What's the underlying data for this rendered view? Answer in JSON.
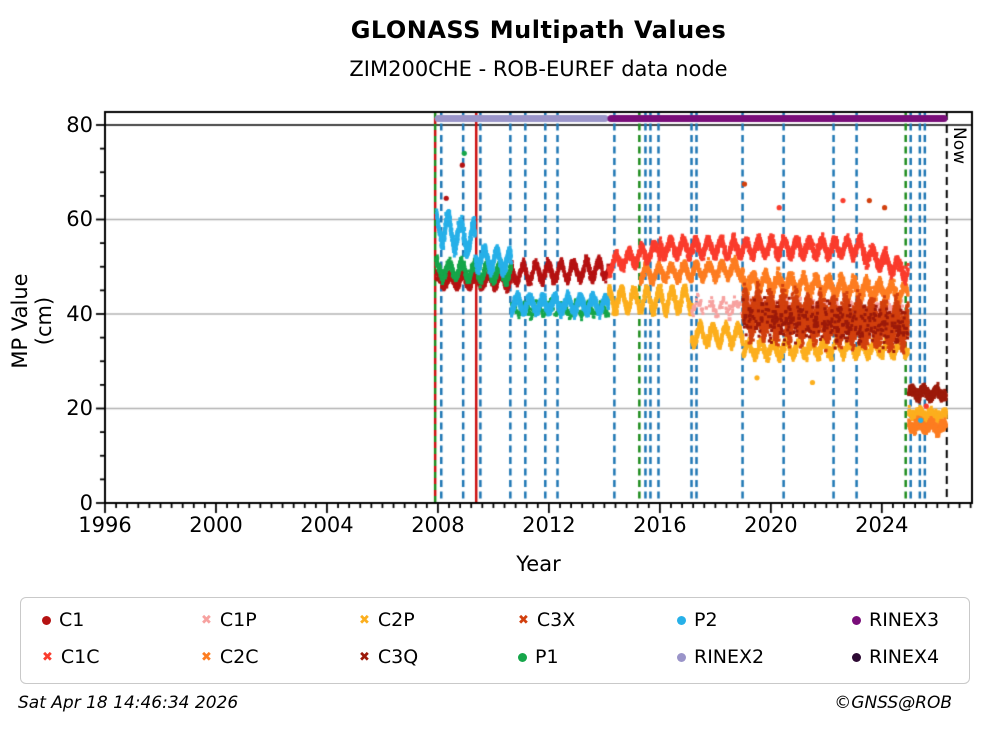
{
  "chart": {
    "title": "GLONASS Multipath Values",
    "subtitle": "ZIM200CHE - ROB-EUREF data node",
    "xlabel": "Year",
    "ylabel": "MP Value (cm)",
    "now_label": "Now"
  },
  "footer": {
    "timestamp": "Sat Apr 18 14:46:34 2026",
    "copyright": "©GNSS@ROB"
  },
  "chart_data": {
    "type": "scatter",
    "title": "GLONASS Multipath Values",
    "subtitle": "ZIM200CHE - ROB-EUREF data node",
    "xlabel": "Year",
    "ylabel": "MP Value (cm)",
    "xlim": [
      1996,
      2027.25
    ],
    "ylim": [
      0,
      82.75
    ],
    "xticks": [
      1996,
      2000,
      2004,
      2008,
      2012,
      2016,
      2020,
      2024
    ],
    "yticks": [
      0,
      20,
      40,
      60,
      80
    ],
    "x_minor_step": 0.4,
    "y_minor_step": 5,
    "grid_y_values": [
      20,
      40,
      60
    ],
    "ref_line_y": 80,
    "grid_color": "#b0b0b0",
    "event_colors": {
      "blue": "#1f77b4",
      "green": "#1e8c1e",
      "red": "#cc1111",
      "black": "#000000"
    },
    "rinex_bars": [
      {
        "label": "RINEX2",
        "from": 2007.9,
        "to": 2014.13,
        "mp": 81.4,
        "color": "#9a94c9"
      },
      {
        "label": "RINEX3",
        "from": 2014.13,
        "to": 2026.35,
        "mp": 81.4,
        "color": "#790d79"
      }
    ],
    "now_year": 2026.34,
    "event_lines": [
      {
        "year": 2007.9,
        "color": "green-red",
        "style": "dashed"
      },
      {
        "year": 2008.12,
        "color": "blue",
        "style": "dashed"
      },
      {
        "year": 2008.91,
        "color": "blue",
        "style": "dashed"
      },
      {
        "year": 2009.38,
        "color": "red",
        "style": "solid"
      },
      {
        "year": 2009.53,
        "color": "blue",
        "style": "dashed"
      },
      {
        "year": 2010.61,
        "color": "blue",
        "style": "dashed"
      },
      {
        "year": 2011.15,
        "color": "blue",
        "style": "dashed"
      },
      {
        "year": 2011.87,
        "color": "blue",
        "style": "dashed"
      },
      {
        "year": 2012.31,
        "color": "blue",
        "style": "dashed"
      },
      {
        "year": 2014.36,
        "color": "blue",
        "style": "dashed"
      },
      {
        "year": 2015.26,
        "color": "green",
        "style": "dashed"
      },
      {
        "year": 2015.48,
        "color": "blue",
        "style": "dashed"
      },
      {
        "year": 2015.66,
        "color": "blue",
        "style": "dashed"
      },
      {
        "year": 2015.95,
        "color": "blue",
        "style": "dashed"
      },
      {
        "year": 2017.14,
        "color": "blue",
        "style": "dashed"
      },
      {
        "year": 2017.32,
        "color": "blue",
        "style": "dashed"
      },
      {
        "year": 2018.98,
        "color": "blue",
        "style": "dashed"
      },
      {
        "year": 2020.46,
        "color": "blue",
        "style": "dashed"
      },
      {
        "year": 2022.26,
        "color": "blue",
        "style": "dashed"
      },
      {
        "year": 2023.09,
        "color": "blue",
        "style": "dashed"
      },
      {
        "year": 2024.86,
        "color": "green",
        "style": "dashed"
      },
      {
        "year": 2025.04,
        "color": "blue",
        "style": "dashed"
      },
      {
        "year": 2025.37,
        "color": "blue",
        "style": "dashed"
      },
      {
        "year": 2025.55,
        "color": "blue",
        "style": "dashed"
      }
    ],
    "legend": [
      {
        "id": "C1",
        "label": "C1",
        "marker": "dot",
        "color": "#b51212"
      },
      {
        "id": "C1C",
        "label": "C1C",
        "marker": "x",
        "color": "#fa3c2d"
      },
      {
        "id": "C1P",
        "label": "C1P",
        "marker": "x",
        "color": "#f7a2a0"
      },
      {
        "id": "C2C",
        "label": "C2C",
        "marker": "x",
        "color": "#fd7d21"
      },
      {
        "id": "C2P",
        "label": "C2P",
        "marker": "x",
        "color": "#fcaf1e"
      },
      {
        "id": "C3Q",
        "label": "C3Q",
        "marker": "x",
        "color": "#9c1a0a"
      },
      {
        "id": "C3X",
        "label": "C3X",
        "marker": "x",
        "color": "#d2400e"
      },
      {
        "id": "P1",
        "label": "P1",
        "marker": "dot",
        "color": "#16a64a"
      },
      {
        "id": "P2",
        "label": "P2",
        "marker": "dot",
        "color": "#27b0e8"
      },
      {
        "id": "RINEX2",
        "label": "RINEX2",
        "marker": "dot",
        "color": "#9a94c9"
      },
      {
        "id": "RINEX3",
        "label": "RINEX3",
        "marker": "dot",
        "color": "#790d79"
      },
      {
        "id": "RINEX4",
        "label": "RINEX4",
        "marker": "dot",
        "color": "#2d0a33"
      }
    ],
    "draw_order": [
      "C1",
      "P1",
      "P2",
      "C2P",
      "C1P",
      "C2C",
      "C1C",
      "C3X",
      "C3Q"
    ],
    "series": [
      {
        "id": "C1",
        "color": "#b51212",
        "bands": [
          {
            "from": 2007.95,
            "to": 2010.65,
            "mp_start": 47.0,
            "mp_end": 47.0,
            "season_amp": 1.2,
            "spread": 1.6,
            "pts_per_year": 260
          },
          {
            "from": 2010.65,
            "to": 2014.15,
            "mp_start": 48.5,
            "mp_end": 49.5,
            "season_amp": 1.8,
            "spread": 1.8,
            "pts_per_year": 260
          }
        ]
      },
      {
        "id": "P1",
        "color": "#16a64a",
        "bands": [
          {
            "from": 2007.95,
            "to": 2010.65,
            "mp_start": 49.5,
            "mp_end": 48.5,
            "season_amp": 1.6,
            "spread": 1.8,
            "pts_per_year": 300
          },
          {
            "from": 2010.65,
            "to": 2014.15,
            "mp_start": 41.0,
            "mp_end": 41.0,
            "season_amp": 1.2,
            "spread": 1.5,
            "pts_per_year": 80
          }
        ]
      },
      {
        "id": "P2",
        "color": "#27b0e8",
        "bands": [
          {
            "from": 2007.95,
            "to": 2009.35,
            "mp_start": 58.5,
            "mp_end": 55.5,
            "season_amp": 3.0,
            "spread": 2.6,
            "pts_per_year": 420
          },
          {
            "from": 2009.35,
            "to": 2010.65,
            "mp_start": 52.0,
            "mp_end": 51.0,
            "season_amp": 2.0,
            "spread": 2.2,
            "pts_per_year": 420
          },
          {
            "from": 2010.65,
            "to": 2014.15,
            "mp_start": 42.0,
            "mp_end": 42.0,
            "season_amp": 1.5,
            "spread": 1.8,
            "pts_per_year": 420
          }
        ]
      },
      {
        "id": "C2P",
        "color": "#fcaf1e",
        "bands": [
          {
            "from": 2014.15,
            "to": 2017.15,
            "mp_start": 43.0,
            "mp_end": 43.0,
            "season_amp": 2.2,
            "spread": 2.0,
            "pts_per_year": 330
          },
          {
            "from": 2017.15,
            "to": 2019.0,
            "mp_start": 35.5,
            "mp_end": 35.5,
            "season_amp": 1.8,
            "spread": 1.8,
            "pts_per_year": 330
          },
          {
            "from": 2019.0,
            "to": 2024.95,
            "mp_start": 32.5,
            "mp_end": 33.0,
            "season_amp": 1.5,
            "spread": 2.2,
            "pts_per_year": 200
          },
          {
            "from": 2024.97,
            "to": 2026.32,
            "mp_start": 19.0,
            "mp_end": 18.5,
            "season_amp": 0.6,
            "spread": 1.5,
            "pts_per_year": 350
          }
        ]
      },
      {
        "id": "C1P",
        "color": "#f7a2a0",
        "bands": [
          {
            "from": 2017.15,
            "to": 2024.95,
            "mp_start": 41.5,
            "mp_end": 41.0,
            "season_amp": 1.2,
            "spread": 2.2,
            "pts_per_year": 60
          }
        ]
      },
      {
        "id": "C2C",
        "color": "#fd7d21",
        "bands": [
          {
            "from": 2015.3,
            "to": 2019.0,
            "mp_start": 48.5,
            "mp_end": 49.5,
            "season_amp": 1.4,
            "spread": 1.7,
            "pts_per_year": 300
          },
          {
            "from": 2019.0,
            "to": 2024.95,
            "mp_start": 47.0,
            "mp_end": 44.5,
            "season_amp": 1.5,
            "spread": 2.4,
            "pts_per_year": 300
          },
          {
            "from": 2024.97,
            "to": 2026.32,
            "mp_start": 16.5,
            "mp_end": 16.0,
            "season_amp": 0.8,
            "spread": 1.8,
            "pts_per_year": 400
          }
        ]
      },
      {
        "id": "C1C",
        "color": "#fa3c2d",
        "bands": [
          {
            "from": 2014.15,
            "to": 2016.0,
            "mp_start": 50.5,
            "mp_end": 53.5,
            "season_amp": 1.5,
            "spread": 1.8,
            "pts_per_year": 300
          },
          {
            "from": 2016.0,
            "to": 2023.3,
            "mp_start": 54.0,
            "mp_end": 54.0,
            "season_amp": 1.6,
            "spread": 2.0,
            "pts_per_year": 300
          },
          {
            "from": 2023.3,
            "to": 2024.95,
            "mp_start": 53.0,
            "mp_end": 49.0,
            "season_amp": 1.5,
            "spread": 2.2,
            "pts_per_year": 300
          }
        ]
      },
      {
        "id": "C3X",
        "color": "#d2400e",
        "bands": [
          {
            "from": 2019.0,
            "to": 2024.95,
            "mp_start": 40.0,
            "mp_end": 37.5,
            "season_amp": 2.0,
            "spread": 6.0,
            "pts_per_year": 900
          }
        ]
      },
      {
        "id": "C3Q",
        "color": "#9c1a0a",
        "bands": [
          {
            "from": 2019.0,
            "to": 2024.95,
            "mp_start": 39.0,
            "mp_end": 37.0,
            "season_amp": 1.5,
            "spread": 6.5,
            "pts_per_year": 60
          },
          {
            "from": 2024.97,
            "to": 2026.32,
            "mp_start": 23.5,
            "mp_end": 23.0,
            "season_amp": 0.8,
            "spread": 1.8,
            "pts_per_year": 400
          }
        ]
      }
    ],
    "outliers": [
      {
        "series": "P1",
        "year": 2008.95,
        "mp": 74.0
      },
      {
        "series": "C1",
        "year": 2008.88,
        "mp": 71.5
      },
      {
        "series": "C1",
        "year": 2008.3,
        "mp": 64.5
      },
      {
        "series": "C3X",
        "year": 2019.05,
        "mp": 67.5
      },
      {
        "series": "C3X",
        "year": 2023.55,
        "mp": 64.0
      },
      {
        "series": "C3X",
        "year": 2024.1,
        "mp": 62.5
      },
      {
        "series": "C1C",
        "year": 2020.3,
        "mp": 62.5
      },
      {
        "series": "C1C",
        "year": 2022.6,
        "mp": 64.0
      },
      {
        "series": "C2P",
        "year": 2019.5,
        "mp": 26.5
      },
      {
        "series": "C2P",
        "year": 2021.5,
        "mp": 25.5
      },
      {
        "series": "P2",
        "year": 2025.4,
        "mp": 17.5
      },
      {
        "series": "C1C",
        "year": 2025.6,
        "mp": 20.5
      }
    ]
  }
}
